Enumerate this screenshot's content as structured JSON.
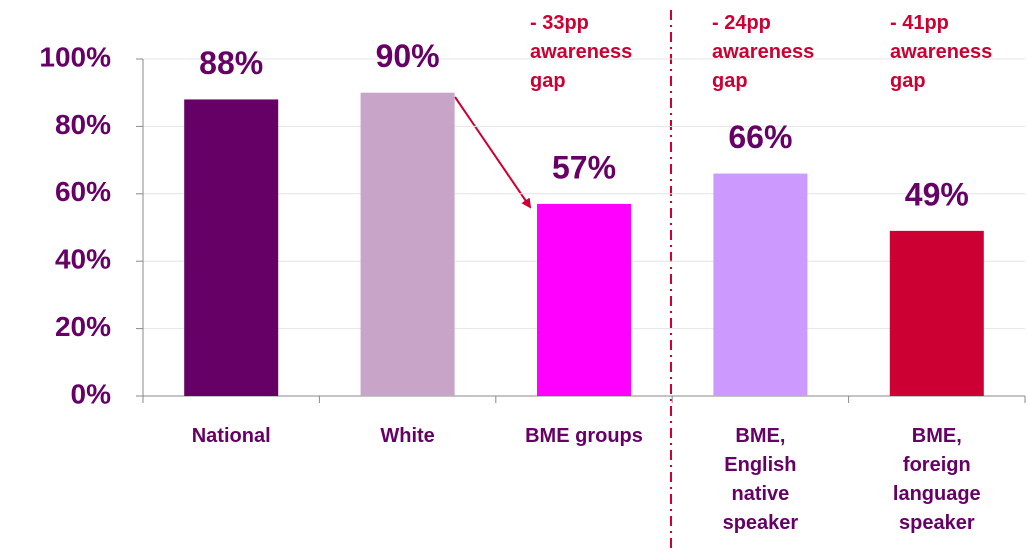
{
  "chart_data": {
    "type": "bar",
    "categories": [
      "National",
      "White",
      "BME groups",
      "BME,\nEnglish\nnative\nspeaker",
      "BME,\nforeign\nlanguage\nspeaker"
    ],
    "values": [
      88,
      90,
      57,
      66,
      49
    ],
    "value_labels": [
      "88%",
      "90%",
      "57%",
      "66%",
      "49%"
    ],
    "colors": [
      "#660066",
      "#c8a4c8",
      "#ff00ff",
      "#cc99ff",
      "#cc0033"
    ],
    "ylim": [
      0,
      100
    ],
    "yticks": [
      {
        "value": 0,
        "label": "0%"
      },
      {
        "value": 20,
        "label": "20%"
      },
      {
        "value": 40,
        "label": "40%"
      },
      {
        "value": 60,
        "label": "60%"
      },
      {
        "value": 80,
        "label": "80%"
      },
      {
        "value": 100,
        "label": "100%"
      }
    ],
    "grid": true,
    "annotations": [
      "- 33pp\nawareness\ngap",
      "- 24pp\nawareness\ngap",
      "- 41pp\nawareness\ngap"
    ]
  }
}
